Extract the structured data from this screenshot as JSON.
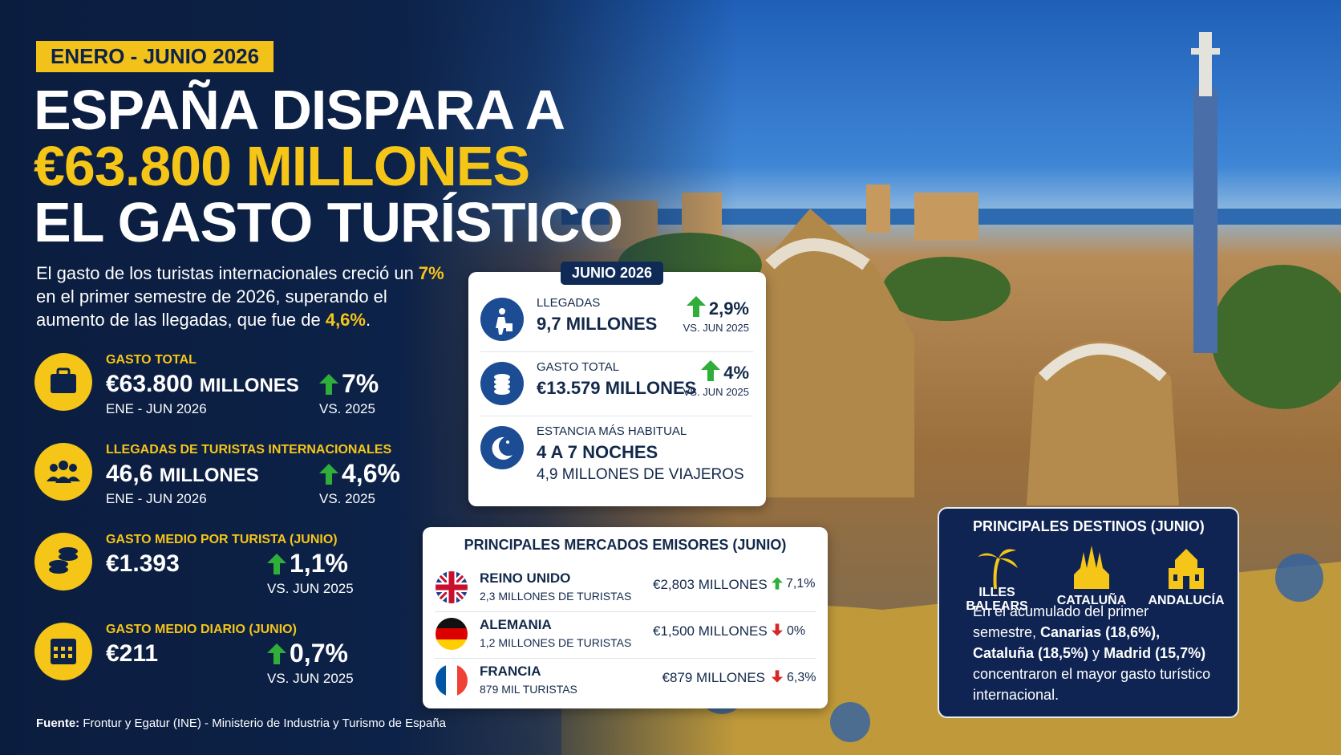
{
  "header": {
    "period": "ENERO - JUNIO 2026",
    "title_line1": "ESPAÑA DISPARA A",
    "title_highlight": "€63.800 MILLONES",
    "title_line3": "EL GASTO TURÍSTICO"
  },
  "intro": [
    {
      "text": "El gasto de los turistas internacionales creció un ",
      "highlight": false
    },
    {
      "text": "7%",
      "highlight": true
    },
    {
      "text": " en el primer semestre de 2026, superando el aumento de las llegadas, que fue de ",
      "highlight": false
    },
    {
      "text": "4,6%",
      "highlight": true
    },
    {
      "text": ".",
      "highlight": false
    }
  ],
  "kpis": [
    {
      "label": "GASTO TOTAL",
      "value": "€63.800",
      "unit": "MILLONES",
      "period": "ENE - JUN 2026",
      "change": "7%",
      "compare": "VS. 2025"
    },
    {
      "label": "LLEGADAS DE TURISTAS INTERNACIONALES",
      "value": "46,6",
      "unit": "MILLONES",
      "period": "ENE - JUN 2026",
      "change": "4,6%",
      "compare": "VS. 2025"
    },
    {
      "label": "GASTO MEDIO POR TURISTA (JUNIO)",
      "value": "€1.393",
      "change": "1,1%",
      "compare": "VS. JUN 2025"
    },
    {
      "label": "GASTO MEDIO DIARIO (JUNIO)",
      "value": "€211",
      "change": "0,7%",
      "compare": "VS. JUN 2025"
    }
  ],
  "june": {
    "badge": "JUNIO 2026",
    "items": [
      {
        "label": "LLEGADAS",
        "value": "9,7 MILLONES",
        "change": "2,9%",
        "compare": "VS. JUN 2025"
      },
      {
        "label": "GASTO TOTAL",
        "value": "€13.579 MILLONES",
        "change": "4%",
        "compare": "VS. JUN 2025"
      },
      {
        "label": "ESTANCIA MÁS HABITUAL",
        "value": "4 A 7 NOCHES",
        "note": "4,9 MILLONES DE VIAJEROS"
      }
    ]
  },
  "markets": {
    "title": "PRINCIPALES MERCADOS EMISORES (JUNIO)",
    "rows": [
      {
        "country": "REINO UNIDO",
        "tourists": "2,3 MILLONES DE TURISTAS",
        "spend": "€2,803 MILLONES",
        "change": "7,1%",
        "direction": "up"
      },
      {
        "country": "ALEMANIA",
        "tourists": "1,2 MILLONES DE TURISTAS",
        "spend": "€1,500 MILLONES",
        "change": "0%",
        "direction": "down"
      },
      {
        "country": "FRANCIA",
        "tourists": "879 MIL TURISTAS",
        "spend": "€879 MILLONES",
        "change": "6,3%",
        "direction": "down"
      }
    ]
  },
  "destinations": {
    "title": "PRINCIPALES DESTINOS (JUNIO)",
    "items": [
      "ILLES BALEARS",
      "CATALUÑA",
      "ANDALUCÍA"
    ],
    "summary": [
      {
        "text": "En el acumulado del primer semestre, ",
        "bold": false
      },
      {
        "text": "Canarias (18,6%), Cataluña (18,5%)",
        "bold": true
      },
      {
        "text": " y ",
        "bold": false
      },
      {
        "text": "Madrid (15,7%)",
        "bold": true
      },
      {
        "text": " concentraron el mayor gasto turístico internacional.",
        "bold": false
      }
    ]
  },
  "source": {
    "label": "Fuente:",
    "text": " Frontur y Egatur (INE) - Ministerio de Industria y Turismo de España"
  }
}
